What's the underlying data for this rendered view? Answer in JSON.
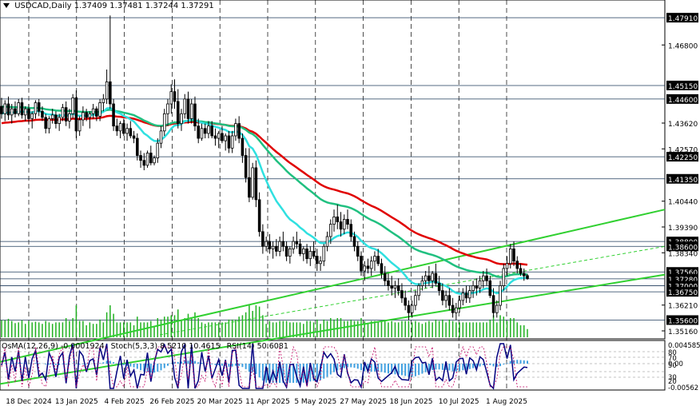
{
  "header": {
    "symbol": "USDCAD,Daily",
    "open": "1.37409",
    "high": "1.37481",
    "low": "1.37244",
    "close": "1.37291"
  },
  "indicators": {
    "osma": "OsMA(12,26,9) -0.0001924",
    "stoch": "Stoch(5,3,3) 8.5210 10.4615",
    "rsi": "RSI(14) 50.6081"
  },
  "colors": {
    "up_candle": "#ffffff",
    "down_candle": "#000000",
    "ema_red": "#e00000",
    "ema_green": "#20c080",
    "ema_cyan": "#30e0e0",
    "channel_green": "#30d030",
    "histogram": "#40a0e0",
    "level_line": "#1e3a5a"
  },
  "chart_data": {
    "type": "candlestick",
    "title": "USDCAD,Daily",
    "ylim": [
      1.349,
      1.485
    ],
    "y_tick_labels": [
      "1.47910",
      "1.46800",
      "1.45150",
      "1.44600",
      "1.43620",
      "1.42570",
      "1.42250",
      "1.41350",
      "1.40440",
      "1.39390",
      "1.38800",
      "1.38600",
      "1.38340",
      "1.37560",
      "1.37280",
      "1.37000",
      "1.36750",
      "1.36210",
      "1.35600",
      "1.35160"
    ],
    "highlighted_levels": [
      "1.47910",
      "1.45150",
      "1.44600",
      "1.42250",
      "1.41350",
      "1.38800",
      "1.38600",
      "1.37560",
      "1.37280",
      "1.37000",
      "1.36750",
      "1.35600"
    ],
    "x_tick_labels": [
      "18 Dec 2024",
      "13 Jan 2025",
      "4 Feb 2025",
      "26 Feb 2025",
      "20 Mar 2025",
      "11 Apr 2025",
      "5 May 2025",
      "27 May 2025",
      "18 Jun 2025",
      "10 Jul 2025",
      "1 Aug 2025"
    ],
    "candles": [
      {
        "o": 1.443,
        "h": 1.4465,
        "l": 1.438,
        "c": 1.44
      },
      {
        "o": 1.44,
        "h": 1.4455,
        "l": 1.437,
        "c": 1.444
      },
      {
        "o": 1.444,
        "h": 1.447,
        "l": 1.4375,
        "c": 1.4395
      },
      {
        "o": 1.4395,
        "h": 1.444,
        "l": 1.436,
        "c": 1.442
      },
      {
        "o": 1.442,
        "h": 1.445,
        "l": 1.4385,
        "c": 1.44
      },
      {
        "o": 1.44,
        "h": 1.446,
        "l": 1.439,
        "c": 1.4445
      },
      {
        "o": 1.4445,
        "h": 1.4465,
        "l": 1.438,
        "c": 1.4395
      },
      {
        "o": 1.4395,
        "h": 1.443,
        "l": 1.437,
        "c": 1.442
      },
      {
        "o": 1.442,
        "h": 1.444,
        "l": 1.436,
        "c": 1.438
      },
      {
        "o": 1.438,
        "h": 1.441,
        "l": 1.434,
        "c": 1.44
      },
      {
        "o": 1.44,
        "h": 1.4455,
        "l": 1.438,
        "c": 1.4445
      },
      {
        "o": 1.4445,
        "h": 1.446,
        "l": 1.439,
        "c": 1.441
      },
      {
        "o": 1.441,
        "h": 1.443,
        "l": 1.437,
        "c": 1.4385
      },
      {
        "o": 1.4385,
        "h": 1.44,
        "l": 1.432,
        "c": 1.434
      },
      {
        "o": 1.434,
        "h": 1.439,
        "l": 1.432,
        "c": 1.438
      },
      {
        "o": 1.438,
        "h": 1.442,
        "l": 1.436,
        "c": 1.4395
      },
      {
        "o": 1.4395,
        "h": 1.441,
        "l": 1.434,
        "c": 1.436
      },
      {
        "o": 1.436,
        "h": 1.44,
        "l": 1.433,
        "c": 1.4385
      },
      {
        "o": 1.4385,
        "h": 1.444,
        "l": 1.437,
        "c": 1.4425
      },
      {
        "o": 1.4425,
        "h": 1.445,
        "l": 1.435,
        "c": 1.437
      },
      {
        "o": 1.437,
        "h": 1.442,
        "l": 1.434,
        "c": 1.44
      },
      {
        "o": 1.44,
        "h": 1.448,
        "l": 1.438,
        "c": 1.4465
      },
      {
        "o": 1.4465,
        "h": 1.4495,
        "l": 1.43,
        "c": 1.433
      },
      {
        "o": 1.433,
        "h": 1.439,
        "l": 1.431,
        "c": 1.4375
      },
      {
        "o": 1.4375,
        "h": 1.443,
        "l": 1.435,
        "c": 1.4405
      },
      {
        "o": 1.4405,
        "h": 1.442,
        "l": 1.437,
        "c": 1.4385
      },
      {
        "o": 1.4385,
        "h": 1.441,
        "l": 1.434,
        "c": 1.44
      },
      {
        "o": 1.44,
        "h": 1.444,
        "l": 1.438,
        "c": 1.442
      },
      {
        "o": 1.442,
        "h": 1.443,
        "l": 1.437,
        "c": 1.439
      },
      {
        "o": 1.439,
        "h": 1.446,
        "l": 1.437,
        "c": 1.4445
      },
      {
        "o": 1.4445,
        "h": 1.448,
        "l": 1.441,
        "c": 1.446
      },
      {
        "o": 1.446,
        "h": 1.458,
        "l": 1.444,
        "c": 1.453
      },
      {
        "o": 1.453,
        "h": 1.48,
        "l": 1.442,
        "c": 1.444
      },
      {
        "o": 1.444,
        "h": 1.446,
        "l": 1.433,
        "c": 1.435
      },
      {
        "o": 1.435,
        "h": 1.438,
        "l": 1.431,
        "c": 1.433
      },
      {
        "o": 1.433,
        "h": 1.437,
        "l": 1.43,
        "c": 1.436
      },
      {
        "o": 1.436,
        "h": 1.438,
        "l": 1.431,
        "c": 1.432
      },
      {
        "o": 1.432,
        "h": 1.436,
        "l": 1.429,
        "c": 1.434
      },
      {
        "o": 1.434,
        "h": 1.437,
        "l": 1.43,
        "c": 1.431
      },
      {
        "o": 1.431,
        "h": 1.433,
        "l": 1.428,
        "c": 1.43
      },
      {
        "o": 1.43,
        "h": 1.432,
        "l": 1.421,
        "c": 1.423
      },
      {
        "o": 1.423,
        "h": 1.425,
        "l": 1.418,
        "c": 1.421
      },
      {
        "o": 1.421,
        "h": 1.424,
        "l": 1.417,
        "c": 1.419
      },
      {
        "o": 1.419,
        "h": 1.425,
        "l": 1.418,
        "c": 1.424
      },
      {
        "o": 1.424,
        "h": 1.427,
        "l": 1.419,
        "c": 1.42
      },
      {
        "o": 1.42,
        "h": 1.423,
        "l": 1.419,
        "c": 1.422
      },
      {
        "o": 1.422,
        "h": 1.43,
        "l": 1.42,
        "c": 1.428
      },
      {
        "o": 1.428,
        "h": 1.435,
        "l": 1.426,
        "c": 1.433
      },
      {
        "o": 1.433,
        "h": 1.442,
        "l": 1.431,
        "c": 1.44
      },
      {
        "o": 1.44,
        "h": 1.446,
        "l": 1.435,
        "c": 1.444
      },
      {
        "o": 1.444,
        "h": 1.452,
        "l": 1.44,
        "c": 1.449
      },
      {
        "o": 1.449,
        "h": 1.454,
        "l": 1.442,
        "c": 1.445
      },
      {
        "o": 1.445,
        "h": 1.45,
        "l": 1.434,
        "c": 1.436
      },
      {
        "o": 1.436,
        "h": 1.442,
        "l": 1.433,
        "c": 1.44
      },
      {
        "o": 1.44,
        "h": 1.448,
        "l": 1.438,
        "c": 1.446
      },
      {
        "o": 1.446,
        "h": 1.449,
        "l": 1.436,
        "c": 1.438
      },
      {
        "o": 1.438,
        "h": 1.446,
        "l": 1.436,
        "c": 1.444
      },
      {
        "o": 1.444,
        "h": 1.447,
        "l": 1.433,
        "c": 1.435
      },
      {
        "o": 1.435,
        "h": 1.438,
        "l": 1.428,
        "c": 1.43
      },
      {
        "o": 1.43,
        "h": 1.436,
        "l": 1.429,
        "c": 1.434
      },
      {
        "o": 1.434,
        "h": 1.436,
        "l": 1.43,
        "c": 1.432
      },
      {
        "o": 1.432,
        "h": 1.437,
        "l": 1.43,
        "c": 1.435
      },
      {
        "o": 1.435,
        "h": 1.437,
        "l": 1.43,
        "c": 1.431
      },
      {
        "o": 1.431,
        "h": 1.434,
        "l": 1.427,
        "c": 1.43
      },
      {
        "o": 1.43,
        "h": 1.433,
        "l": 1.426,
        "c": 1.432
      },
      {
        "o": 1.432,
        "h": 1.435,
        "l": 1.428,
        "c": 1.429
      },
      {
        "o": 1.429,
        "h": 1.432,
        "l": 1.425,
        "c": 1.431
      },
      {
        "o": 1.431,
        "h": 1.433,
        "l": 1.424,
        "c": 1.426
      },
      {
        "o": 1.426,
        "h": 1.433,
        "l": 1.424,
        "c": 1.431
      },
      {
        "o": 1.431,
        "h": 1.438,
        "l": 1.429,
        "c": 1.436
      },
      {
        "o": 1.436,
        "h": 1.439,
        "l": 1.428,
        "c": 1.43
      },
      {
        "o": 1.43,
        "h": 1.432,
        "l": 1.42,
        "c": 1.423
      },
      {
        "o": 1.423,
        "h": 1.426,
        "l": 1.412,
        "c": 1.414
      },
      {
        "o": 1.414,
        "h": 1.426,
        "l": 1.404,
        "c": 1.406
      },
      {
        "o": 1.406,
        "h": 1.42,
        "l": 1.405,
        "c": 1.418
      },
      {
        "o": 1.418,
        "h": 1.421,
        "l": 1.402,
        "c": 1.405
      },
      {
        "o": 1.405,
        "h": 1.408,
        "l": 1.39,
        "c": 1.392
      },
      {
        "o": 1.392,
        "h": 1.395,
        "l": 1.383,
        "c": 1.386
      },
      {
        "o": 1.386,
        "h": 1.39,
        "l": 1.384,
        "c": 1.388
      },
      {
        "o": 1.388,
        "h": 1.391,
        "l": 1.383,
        "c": 1.385
      },
      {
        "o": 1.385,
        "h": 1.388,
        "l": 1.381,
        "c": 1.386
      },
      {
        "o": 1.386,
        "h": 1.389,
        "l": 1.382,
        "c": 1.384
      },
      {
        "o": 1.384,
        "h": 1.39,
        "l": 1.382,
        "c": 1.388
      },
      {
        "o": 1.388,
        "h": 1.392,
        "l": 1.384,
        "c": 1.386
      },
      {
        "o": 1.386,
        "h": 1.388,
        "l": 1.38,
        "c": 1.382
      },
      {
        "o": 1.382,
        "h": 1.386,
        "l": 1.379,
        "c": 1.385
      },
      {
        "o": 1.385,
        "h": 1.39,
        "l": 1.383,
        "c": 1.388
      },
      {
        "o": 1.388,
        "h": 1.392,
        "l": 1.385,
        "c": 1.387
      },
      {
        "o": 1.387,
        "h": 1.389,
        "l": 1.382,
        "c": 1.383
      },
      {
        "o": 1.383,
        "h": 1.386,
        "l": 1.38,
        "c": 1.385
      },
      {
        "o": 1.385,
        "h": 1.387,
        "l": 1.379,
        "c": 1.381
      },
      {
        "o": 1.381,
        "h": 1.386,
        "l": 1.378,
        "c": 1.384
      },
      {
        "o": 1.384,
        "h": 1.388,
        "l": 1.381,
        "c": 1.382
      },
      {
        "o": 1.382,
        "h": 1.385,
        "l": 1.376,
        "c": 1.379
      },
      {
        "o": 1.379,
        "h": 1.382,
        "l": 1.376,
        "c": 1.38
      },
      {
        "o": 1.38,
        "h": 1.387,
        "l": 1.378,
        "c": 1.386
      },
      {
        "o": 1.386,
        "h": 1.392,
        "l": 1.384,
        "c": 1.39
      },
      {
        "o": 1.39,
        "h": 1.397,
        "l": 1.387,
        "c": 1.395
      },
      {
        "o": 1.395,
        "h": 1.401,
        "l": 1.392,
        "c": 1.398
      },
      {
        "o": 1.398,
        "h": 1.403,
        "l": 1.393,
        "c": 1.396
      },
      {
        "o": 1.396,
        "h": 1.4,
        "l": 1.39,
        "c": 1.393
      },
      {
        "o": 1.393,
        "h": 1.399,
        "l": 1.391,
        "c": 1.397
      },
      {
        "o": 1.397,
        "h": 1.401,
        "l": 1.393,
        "c": 1.395
      },
      {
        "o": 1.395,
        "h": 1.397,
        "l": 1.388,
        "c": 1.39
      },
      {
        "o": 1.39,
        "h": 1.392,
        "l": 1.384,
        "c": 1.386
      },
      {
        "o": 1.386,
        "h": 1.388,
        "l": 1.38,
        "c": 1.382
      },
      {
        "o": 1.382,
        "h": 1.384,
        "l": 1.374,
        "c": 1.376
      },
      {
        "o": 1.376,
        "h": 1.38,
        "l": 1.372,
        "c": 1.378
      },
      {
        "o": 1.378,
        "h": 1.381,
        "l": 1.375,
        "c": 1.377
      },
      {
        "o": 1.377,
        "h": 1.382,
        "l": 1.374,
        "c": 1.38
      },
      {
        "o": 1.38,
        "h": 1.384,
        "l": 1.376,
        "c": 1.382
      },
      {
        "o": 1.382,
        "h": 1.385,
        "l": 1.378,
        "c": 1.379
      },
      {
        "o": 1.379,
        "h": 1.381,
        "l": 1.373,
        "c": 1.375
      },
      {
        "o": 1.375,
        "h": 1.378,
        "l": 1.37,
        "c": 1.372
      },
      {
        "o": 1.372,
        "h": 1.375,
        "l": 1.368,
        "c": 1.37
      },
      {
        "o": 1.37,
        "h": 1.374,
        "l": 1.366,
        "c": 1.369
      },
      {
        "o": 1.369,
        "h": 1.372,
        "l": 1.365,
        "c": 1.37
      },
      {
        "o": 1.37,
        "h": 1.373,
        "l": 1.366,
        "c": 1.368
      },
      {
        "o": 1.368,
        "h": 1.371,
        "l": 1.363,
        "c": 1.365
      },
      {
        "o": 1.365,
        "h": 1.368,
        "l": 1.36,
        "c": 1.362
      },
      {
        "o": 1.362,
        "h": 1.364,
        "l": 1.356,
        "c": 1.359
      },
      {
        "o": 1.359,
        "h": 1.364,
        "l": 1.357,
        "c": 1.362
      },
      {
        "o": 1.362,
        "h": 1.368,
        "l": 1.36,
        "c": 1.366
      },
      {
        "o": 1.366,
        "h": 1.371,
        "l": 1.364,
        "c": 1.37
      },
      {
        "o": 1.37,
        "h": 1.374,
        "l": 1.368,
        "c": 1.372
      },
      {
        "o": 1.372,
        "h": 1.376,
        "l": 1.369,
        "c": 1.374
      },
      {
        "o": 1.374,
        "h": 1.378,
        "l": 1.37,
        "c": 1.372
      },
      {
        "o": 1.372,
        "h": 1.376,
        "l": 1.369,
        "c": 1.375
      },
      {
        "o": 1.375,
        "h": 1.379,
        "l": 1.37,
        "c": 1.371
      },
      {
        "o": 1.371,
        "h": 1.374,
        "l": 1.366,
        "c": 1.368
      },
      {
        "o": 1.368,
        "h": 1.371,
        "l": 1.362,
        "c": 1.364
      },
      {
        "o": 1.364,
        "h": 1.368,
        "l": 1.361,
        "c": 1.366
      },
      {
        "o": 1.366,
        "h": 1.369,
        "l": 1.36,
        "c": 1.362
      },
      {
        "o": 1.362,
        "h": 1.365,
        "l": 1.357,
        "c": 1.359
      },
      {
        "o": 1.359,
        "h": 1.363,
        "l": 1.356,
        "c": 1.361
      },
      {
        "o": 1.361,
        "h": 1.366,
        "l": 1.359,
        "c": 1.364
      },
      {
        "o": 1.364,
        "h": 1.369,
        "l": 1.362,
        "c": 1.367
      },
      {
        "o": 1.367,
        "h": 1.37,
        "l": 1.363,
        "c": 1.365
      },
      {
        "o": 1.365,
        "h": 1.37,
        "l": 1.363,
        "c": 1.368
      },
      {
        "o": 1.368,
        "h": 1.372,
        "l": 1.365,
        "c": 1.37
      },
      {
        "o": 1.37,
        "h": 1.373,
        "l": 1.366,
        "c": 1.369
      },
      {
        "o": 1.369,
        "h": 1.374,
        "l": 1.367,
        "c": 1.372
      },
      {
        "o": 1.372,
        "h": 1.376,
        "l": 1.369,
        "c": 1.374
      },
      {
        "o": 1.374,
        "h": 1.377,
        "l": 1.37,
        "c": 1.372
      },
      {
        "o": 1.372,
        "h": 1.374,
        "l": 1.365,
        "c": 1.366
      },
      {
        "o": 1.366,
        "h": 1.369,
        "l": 1.357,
        "c": 1.359
      },
      {
        "o": 1.359,
        "h": 1.364,
        "l": 1.357,
        "c": 1.362
      },
      {
        "o": 1.362,
        "h": 1.372,
        "l": 1.36,
        "c": 1.37
      },
      {
        "o": 1.37,
        "h": 1.379,
        "l": 1.368,
        "c": 1.377
      },
      {
        "o": 1.377,
        "h": 1.382,
        "l": 1.374,
        "c": 1.379
      },
      {
        "o": 1.379,
        "h": 1.387,
        "l": 1.377,
        "c": 1.385
      },
      {
        "o": 1.385,
        "h": 1.388,
        "l": 1.378,
        "c": 1.38
      },
      {
        "o": 1.38,
        "h": 1.382,
        "l": 1.375,
        "c": 1.377
      },
      {
        "o": 1.377,
        "h": 1.379,
        "l": 1.374,
        "c": 1.375
      },
      {
        "o": 1.375,
        "h": 1.377,
        "l": 1.372,
        "c": 1.374
      },
      {
        "o": 1.37409,
        "h": 1.37481,
        "l": 1.37244,
        "c": 1.37291
      }
    ]
  }
}
